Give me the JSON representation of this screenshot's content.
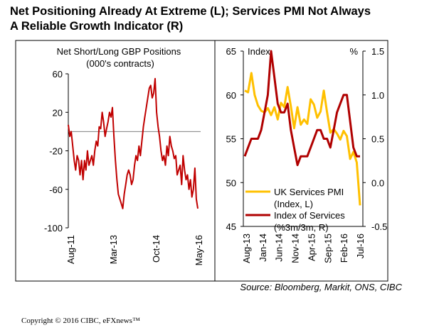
{
  "title": {
    "line1": "Net Positioning Already At Extreme (L); Services PMI Not Always",
    "line2": "A Reliable Growth Indicator (R)"
  },
  "source": "Source: Bloomberg, Markit, ONS, CIBC",
  "copyright": "Copyright © 2016 CIBC, eFXnews™",
  "colors": {
    "left_series": "#c00000",
    "pmi": "#ffc000",
    "services": "#b00000",
    "baseline": "#808080"
  },
  "chart_data": [
    {
      "type": "line",
      "title": "Net Short/Long GBP Positions",
      "subtitle": "(000's contracts)",
      "yticks": [
        "60",
        "20",
        "-20",
        "-60",
        "-100"
      ],
      "ylim": [
        -100,
        60
      ],
      "xticks": [
        "Aug-11",
        "Mar-13",
        "Oct-14",
        "May-16"
      ],
      "grid": false,
      "series": [
        {
          "x_range": [
            "Aug-11",
            "Jul-16"
          ],
          "values": [
            7,
            -5,
            0,
            -15,
            -30,
            -40,
            -25,
            -30,
            -45,
            -30,
            -50,
            -30,
            -40,
            -20,
            -35,
            -30,
            -25,
            -35,
            -20,
            -10,
            -15,
            5,
            3,
            20,
            10,
            -5,
            3,
            10,
            20,
            15,
            25,
            -5,
            -30,
            -50,
            -65,
            -70,
            -75,
            -80,
            -65,
            -55,
            -45,
            -40,
            -45,
            -55,
            -50,
            -35,
            -25,
            -30,
            -15,
            -25,
            -10,
            5,
            15,
            25,
            35,
            45,
            48,
            35,
            40,
            55,
            20,
            5,
            -5,
            -20,
            -30,
            -25,
            -35,
            -15,
            -25,
            -5,
            -15,
            -20,
            -28,
            -25,
            -45,
            -40,
            -35,
            -55,
            -25,
            -40,
            -50,
            -45,
            -60,
            -50,
            -68,
            -60,
            -38,
            -70,
            -80
          ]
        }
      ]
    },
    {
      "type": "line",
      "yticks_left": [
        "65",
        "60",
        "55",
        "50",
        "45"
      ],
      "ylim_left": [
        45,
        65
      ],
      "yticks_right": [
        "1.5",
        "1.0",
        "0.5",
        "0.0",
        "-0.5"
      ],
      "ylim_right": [
        -0.5,
        1.5
      ],
      "xticks": [
        "Aug-13",
        "Jan-14",
        "Jun-14",
        "Nov-14",
        "Apr-15",
        "Sep-15",
        "Feb-16",
        "Jul-16"
      ],
      "axis_label_left": "Index",
      "axis_label_right": "%",
      "legend_position": "bottom-left",
      "grid": false,
      "series": [
        {
          "name": "UK Services PMI",
          "name_line2": "(Index, L)",
          "axis": "left",
          "x_range": [
            "Aug-13",
            "Jul-16"
          ],
          "values": [
            60.5,
            60.3,
            62.5,
            60.0,
            58.8,
            58.2,
            58.0,
            58.5,
            57.7,
            58.6,
            57.2,
            59.1,
            58.6,
            60.9,
            58.7,
            56.2,
            58.6,
            56.6,
            57.2,
            56.7,
            59.5,
            58.9,
            57.4,
            58.1,
            60.5,
            58.0,
            55.7,
            56.1,
            55.6,
            54.9,
            55.9,
            55.3,
            52.7,
            53.5,
            52.3,
            47.4
          ]
        },
        {
          "name": "Index of Services",
          "name_line2": "(%3m/3m, R)",
          "axis": "right",
          "x_range": [
            "Aug-13",
            "Jul-16"
          ],
          "values": [
            0.3,
            0.4,
            0.5,
            0.5,
            0.5,
            0.6,
            0.8,
            1.0,
            1.5,
            1.2,
            0.9,
            0.8,
            0.8,
            0.9,
            0.6,
            0.4,
            0.2,
            0.3,
            0.3,
            0.3,
            0.4,
            0.5,
            0.6,
            0.6,
            0.5,
            0.5,
            0.4,
            0.6,
            0.8,
            0.9,
            1.0,
            1.0,
            0.7,
            0.4,
            0.3,
            0.3
          ]
        }
      ]
    }
  ]
}
